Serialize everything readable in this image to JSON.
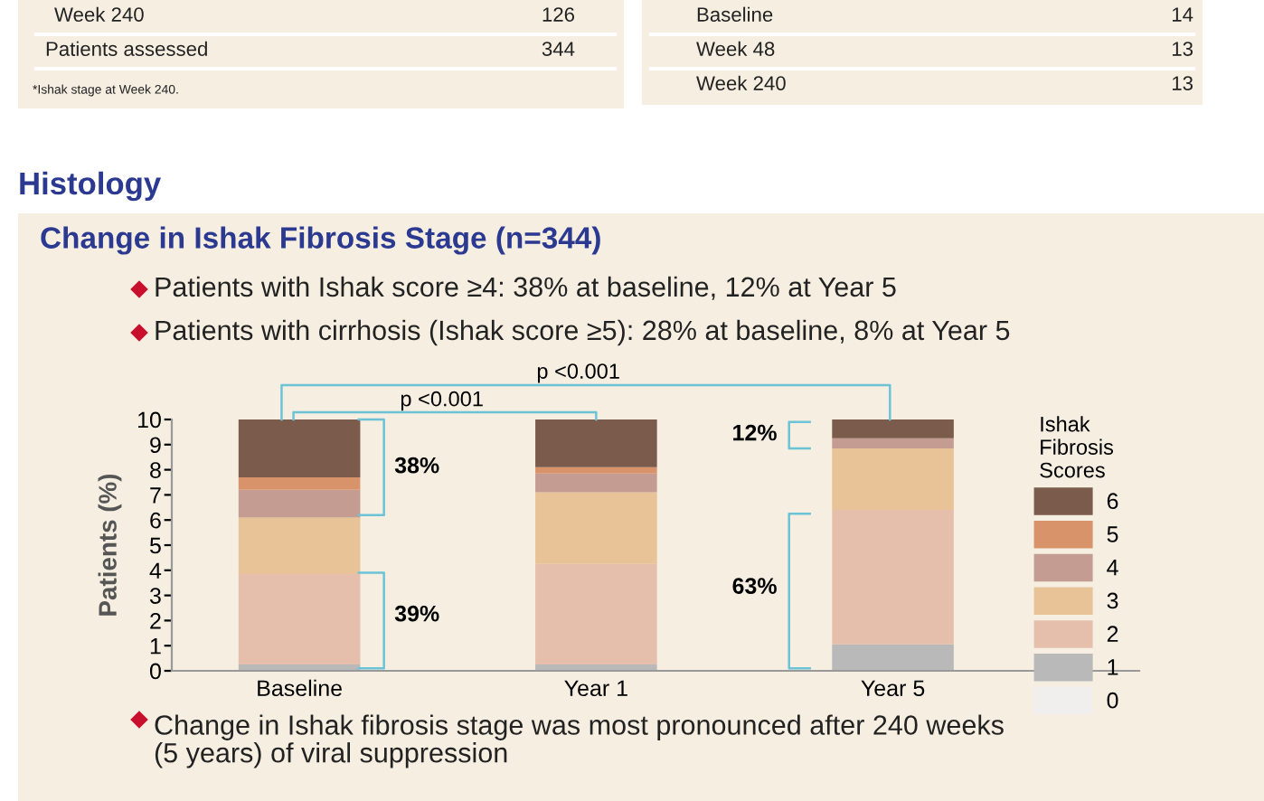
{
  "chart_data": {
    "type": "bar",
    "stacked": true,
    "title": "Change in Ishak Fibrosis Stage (n=344)",
    "subtitle": "Histology",
    "categories": [
      "Baseline",
      "Year 1",
      "Year 5"
    ],
    "series": [
      {
        "name": "0",
        "color": "#f1efed",
        "values": [
          0,
          0,
          0
        ]
      },
      {
        "name": "1",
        "color": "#b9b9b9",
        "values": [
          0.25,
          0.25,
          1.05
        ]
      },
      {
        "name": "2",
        "color": "#e5bfab",
        "values": [
          3.6,
          4.0,
          5.35
        ]
      },
      {
        "name": "3",
        "color": "#e8c397",
        "values": [
          2.25,
          2.85,
          2.45
        ]
      },
      {
        "name": "4",
        "color": "#c49c92",
        "values": [
          1.1,
          0.75,
          0.4
        ]
      },
      {
        "name": "5",
        "color": "#d9936b",
        "values": [
          0.5,
          0.25,
          0
        ]
      },
      {
        "name": "6",
        "color": "#7b5b4b",
        "values": [
          2.3,
          1.9,
          0.75
        ]
      }
    ],
    "ylabel": "Patients (%)",
    "ylim": [
      0,
      10
    ],
    "yticks": [
      0,
      1,
      2,
      3,
      4,
      5,
      6,
      7,
      8,
      9,
      10
    ],
    "legend": "right",
    "legend_title": "Ishak Fibrosis Scores",
    "grid": false,
    "annotations": [
      "Week 240",
      "126",
      "Patients assessed",
      "344",
      "*Ishak stage at Week 240.",
      "Baseline",
      "14",
      "Week 48",
      "13",
      "Week 240",
      "13",
      "Patients with Ishak score ≥4: 38% at baseline, 12% at Year 5",
      "Patients with cirrhosis (Ishak score ≥5): 28% at baseline, 8% at Year 5",
      "p <0.001",
      "p <0.001",
      "38%",
      "39%",
      "12%",
      "63%",
      "Change in Ishak fibrosis stage was most pronounced after 240 weeks\n(5 years) of viral suppression"
    ]
  }
}
